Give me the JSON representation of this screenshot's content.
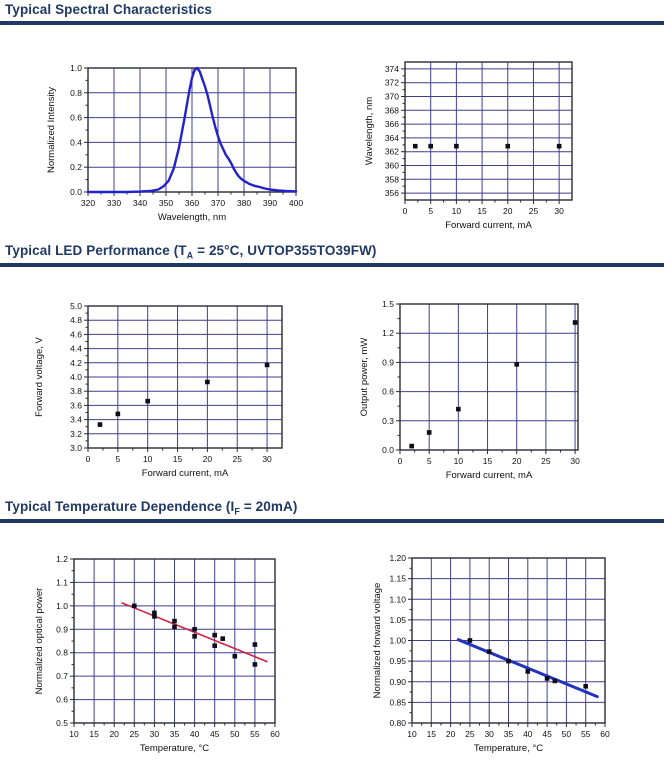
{
  "colors": {
    "header_navy": "#1f3864",
    "grid": "#3f3f8f",
    "axis": "#2a2a3a",
    "text": "#111111",
    "point": "#0d0d1a",
    "spectrum_blue": "#2222cc",
    "trend_red": "#cc2244",
    "trend_blue": "#2133c0"
  },
  "sections": [
    {
      "title": {
        "prefix": "Typical Spectral Characteristics",
        "sub": "",
        "suffix": ""
      }
    },
    {
      "title": {
        "prefix": "Typical LED Performance (T",
        "sub": "A",
        "suffix": " = 25°C, UVTOP355TO39FW)"
      }
    },
    {
      "title": {
        "prefix": "Typical Temperature Dependence (I",
        "sub": "F",
        "suffix": " = 20mA)"
      }
    }
  ],
  "chart_data": [
    {
      "id": "spectral",
      "type": "line",
      "title": "",
      "xlabel": "Wavelength, nm",
      "ylabel": "Normalized Intensity",
      "xlim": [
        320,
        400
      ],
      "ylim": [
        0,
        1.0
      ],
      "grid": true,
      "xticks": {
        "values": [
          320,
          330,
          340,
          350,
          360,
          370,
          380,
          390,
          400
        ],
        "labels": [
          "320",
          "330",
          "340",
          "350",
          "360",
          "370",
          "380",
          "390",
          "400"
        ]
      },
      "yticks": {
        "values": [
          0,
          0.2,
          0.4,
          0.6,
          0.8,
          1.0
        ],
        "labels": [
          "0.0",
          "0.2",
          "0.4",
          "0.6",
          "0.8",
          "1.0"
        ]
      },
      "series": [
        {
          "name": "spectrum",
          "type": "line",
          "color": "#2222cc",
          "width": 2.4,
          "points": [
            [
              320,
              0
            ],
            [
              335,
              0
            ],
            [
              340,
              0.003
            ],
            [
              344,
              0.008
            ],
            [
              347,
              0.02
            ],
            [
              349,
              0.045
            ],
            [
              351,
              0.09
            ],
            [
              353,
              0.19
            ],
            [
              355,
              0.36
            ],
            [
              357,
              0.58
            ],
            [
              359,
              0.82
            ],
            [
              360,
              0.92
            ],
            [
              361,
              0.985
            ],
            [
              362,
              1.0
            ],
            [
              363,
              0.97
            ],
            [
              364,
              0.91
            ],
            [
              365,
              0.85
            ],
            [
              366,
              0.78
            ],
            [
              367,
              0.69
            ],
            [
              368,
              0.6
            ],
            [
              369,
              0.52
            ],
            [
              370,
              0.45
            ],
            [
              371,
              0.39
            ],
            [
              372,
              0.345
            ],
            [
              373,
              0.3
            ],
            [
              374,
              0.27
            ],
            [
              375,
              0.235
            ],
            [
              376,
              0.19
            ],
            [
              377,
              0.155
            ],
            [
              378,
              0.125
            ],
            [
              379,
              0.105
            ],
            [
              380,
              0.09
            ],
            [
              382,
              0.065
            ],
            [
              384,
              0.05
            ],
            [
              386,
              0.04
            ],
            [
              388,
              0.028
            ],
            [
              390,
              0.02
            ],
            [
              393,
              0.013
            ],
            [
              396,
              0.008
            ],
            [
              400,
              0.005
            ]
          ]
        }
      ]
    },
    {
      "id": "peak-wavelength",
      "type": "scatter",
      "title": "",
      "xlabel": "Forward current, mA",
      "ylabel": "Wavelength, nm",
      "xlim": [
        0,
        32.5
      ],
      "ylim": [
        355,
        375
      ],
      "grid": true,
      "xticks": {
        "values": [
          0,
          5,
          10,
          15,
          20,
          25,
          30
        ],
        "labels": [
          "0",
          "5",
          "10",
          "15",
          "20",
          "25",
          "30"
        ]
      },
      "yticks": {
        "values": [
          356,
          358,
          360,
          362,
          364,
          366,
          368,
          370,
          372,
          374
        ],
        "labels": [
          "356",
          "358",
          "360",
          "362",
          "364",
          "366",
          "368",
          "370",
          "372",
          "374"
        ]
      },
      "series": [
        {
          "name": "peak wavelength",
          "type": "scatter",
          "color": "#0d0d1a",
          "points": [
            [
              2,
              362.8
            ],
            [
              5,
              362.8
            ],
            [
              10,
              362.8
            ],
            [
              20,
              362.8
            ],
            [
              30,
              362.8
            ]
          ]
        }
      ]
    },
    {
      "id": "forward-voltage",
      "type": "scatter",
      "title": "",
      "xlabel": "Forward current, mA",
      "ylabel": "Forward voltage, V",
      "xlim": [
        0,
        32.5
      ],
      "ylim": [
        3.0,
        5.0
      ],
      "grid": true,
      "xticks": {
        "values": [
          0,
          5,
          10,
          15,
          20,
          25,
          30
        ],
        "labels": [
          "0",
          "5",
          "10",
          "15",
          "20",
          "25",
          "30"
        ]
      },
      "yticks": {
        "values": [
          3.0,
          3.2,
          3.4,
          3.6,
          3.8,
          4.0,
          4.2,
          4.4,
          4.6,
          4.8,
          5.0
        ],
        "labels": [
          "3.0",
          "3.2",
          "3.4",
          "3.6",
          "3.8",
          "4.0",
          "4.2",
          "4.4",
          "4.6",
          "4.8",
          "5.0"
        ]
      },
      "series": [
        {
          "name": "forward voltage",
          "type": "scatter",
          "color": "#0d0d1a",
          "points": [
            [
              2,
              3.33
            ],
            [
              5,
              3.48
            ],
            [
              10,
              3.66
            ],
            [
              20,
              3.93
            ],
            [
              30,
              4.17
            ]
          ]
        }
      ]
    },
    {
      "id": "output-power",
      "type": "scatter",
      "title": "",
      "xlabel": "Forward current, mA",
      "ylabel": "Output power, mW",
      "xlim": [
        0,
        30.5
      ],
      "ylim": [
        0,
        1.5
      ],
      "grid": true,
      "xticks": {
        "values": [
          0,
          5,
          10,
          15,
          20,
          25,
          30
        ],
        "labels": [
          "0",
          "5",
          "10",
          "15",
          "20",
          "25",
          "30"
        ]
      },
      "yticks": {
        "values": [
          0,
          0.3,
          0.6,
          0.9,
          1.2,
          1.5
        ],
        "labels": [
          "0.0",
          "0.3",
          "0.6",
          "0.9",
          "1.2",
          "1.5"
        ]
      },
      "series": [
        {
          "name": "output power",
          "type": "scatter",
          "color": "#0d0d1a",
          "points": [
            [
              2,
              0.04
            ],
            [
              5,
              0.18
            ],
            [
              10,
              0.42
            ],
            [
              20,
              0.88
            ],
            [
              30,
              1.31
            ]
          ]
        }
      ]
    },
    {
      "id": "optical-power-temp",
      "type": "scatter",
      "title": "",
      "xlabel": "Temperature, °C",
      "ylabel": "Normalized optical power",
      "xlim": [
        10,
        60
      ],
      "ylim": [
        0.5,
        1.2
      ],
      "grid": true,
      "xticks": {
        "values": [
          10,
          15,
          20,
          25,
          30,
          35,
          40,
          45,
          50,
          55,
          60
        ],
        "labels": [
          "10",
          "15",
          "20",
          "25",
          "30",
          "35",
          "40",
          "45",
          "50",
          "55",
          "60"
        ]
      },
      "yticks": {
        "values": [
          0.5,
          0.6,
          0.7,
          0.8,
          0.9,
          1.0,
          1.1,
          1.2
        ],
        "labels": [
          "0.5",
          "0.6",
          "0.7",
          "0.8",
          "0.9",
          "1.0",
          "1.1",
          "1.2"
        ]
      },
      "series": [
        {
          "name": "trend",
          "type": "line",
          "color": "#cc2244",
          "width": 1.6,
          "points": [
            [
              22,
              1.012
            ],
            [
              58,
              0.762
            ]
          ]
        },
        {
          "name": "normalized optical power",
          "type": "scatter",
          "color": "#0d0d1a",
          "points": [
            [
              25,
              1.0
            ],
            [
              30,
              0.97
            ],
            [
              30,
              0.955
            ],
            [
              35,
              0.935
            ],
            [
              35,
              0.91
            ],
            [
              40,
              0.9
            ],
            [
              40,
              0.87
            ],
            [
              45,
              0.875
            ],
            [
              45,
              0.83
            ],
            [
              47,
              0.86
            ],
            [
              50,
              0.785
            ],
            [
              55,
              0.835
            ],
            [
              55,
              0.75
            ]
          ]
        }
      ]
    },
    {
      "id": "forward-voltage-temp",
      "type": "scatter",
      "title": "",
      "xlabel": "Temperature, °C",
      "ylabel": "Normalized forward voltage",
      "xlim": [
        10,
        60
      ],
      "ylim": [
        0.8,
        1.2
      ],
      "grid": true,
      "xticks": {
        "values": [
          10,
          15,
          20,
          25,
          30,
          35,
          40,
          45,
          50,
          55,
          60
        ],
        "labels": [
          "10",
          "15",
          "20",
          "25",
          "30",
          "35",
          "40",
          "45",
          "50",
          "55",
          "60"
        ]
      },
      "yticks": {
        "values": [
          0.8,
          0.85,
          0.9,
          0.95,
          1.0,
          1.05,
          1.1,
          1.15,
          1.2
        ],
        "labels": [
          "0.80",
          "0.85",
          "0.90",
          "0.95",
          "1.00",
          "1.05",
          "1.10",
          "1.15",
          "1.20"
        ]
      },
      "series": [
        {
          "name": "trend",
          "type": "line",
          "color": "#2133c0",
          "width": 3,
          "points": [
            [
              22,
              1.002
            ],
            [
              58,
              0.864
            ]
          ]
        },
        {
          "name": "normalized forward voltage",
          "type": "scatter",
          "color": "#0d0d1a",
          "points": [
            [
              25,
              1.0
            ],
            [
              30,
              0.973
            ],
            [
              35,
              0.95
            ],
            [
              40,
              0.925
            ],
            [
              45,
              0.908
            ],
            [
              47,
              0.902
            ],
            [
              55,
              0.889
            ]
          ]
        }
      ]
    }
  ]
}
